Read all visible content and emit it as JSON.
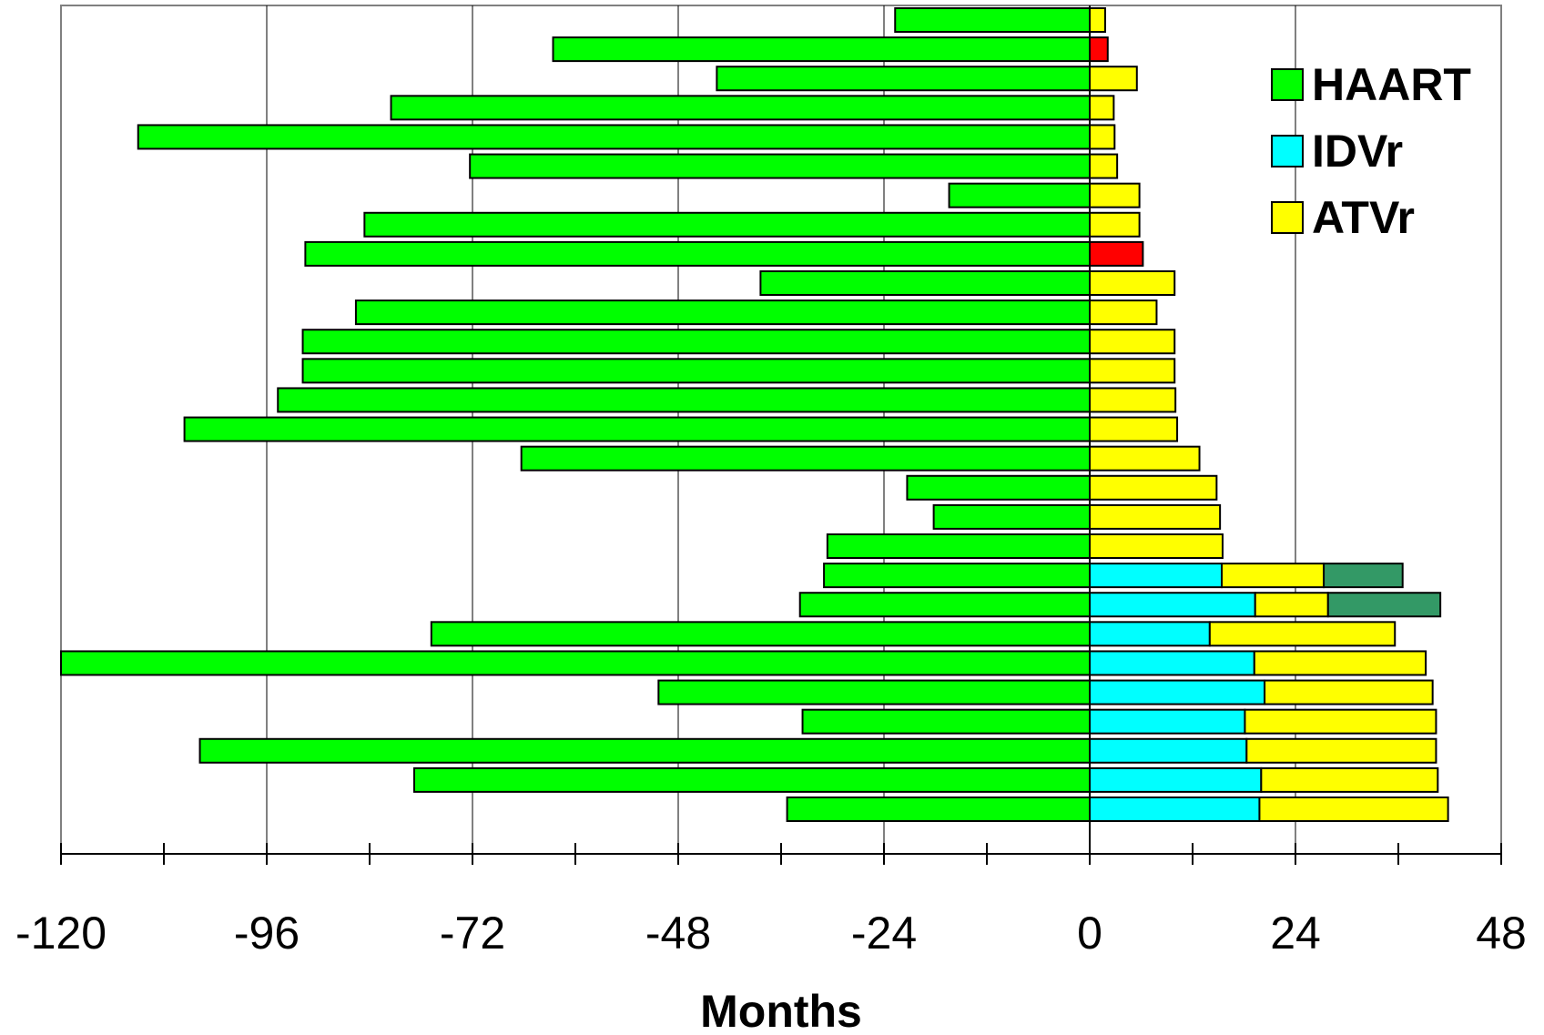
{
  "chart_data": {
    "type": "bar",
    "orientation": "horizontal",
    "stacked": true,
    "title": "",
    "xlabel": "Months",
    "ylabel": "",
    "xlim": [
      -120,
      48
    ],
    "xticks": [
      -120,
      -96,
      -72,
      -48,
      -24,
      0,
      24,
      48
    ],
    "xtick_labels": [
      "-120",
      "-96",
      "-72",
      "-48",
      "-24",
      "0",
      "24",
      "48"
    ],
    "grid": "vertical major gridlines",
    "legend_position": "top-right",
    "legend": [
      {
        "label": "HAART",
        "color": "#00ff00"
      },
      {
        "label": "IDVr",
        "color": "#00ffff"
      },
      {
        "label": "ATVr",
        "color": "#ffff00"
      }
    ],
    "segment_colors": {
      "HAART": "#00ff00",
      "IDVr": "#00ffff",
      "ATVr": "#ffff00",
      "red": "#ff0000",
      "dark_green": "#339966"
    },
    "bars": [
      {
        "segments": [
          {
            "kind": "HAART",
            "start": -22.7,
            "end": 0
          },
          {
            "kind": "ATVr",
            "start": 0,
            "end": 1.8
          }
        ]
      },
      {
        "segments": [
          {
            "kind": "HAART",
            "start": -62.6,
            "end": 0
          },
          {
            "kind": "red",
            "start": 0,
            "end": 2.1
          }
        ]
      },
      {
        "segments": [
          {
            "kind": "HAART",
            "start": -43.5,
            "end": 0
          },
          {
            "kind": "ATVr",
            "start": 0,
            "end": 5.5
          }
        ]
      },
      {
        "segments": [
          {
            "kind": "HAART",
            "start": -81.5,
            "end": 0
          },
          {
            "kind": "ATVr",
            "start": 0,
            "end": 2.8
          }
        ]
      },
      {
        "segments": [
          {
            "kind": "HAART",
            "start": -111.0,
            "end": 0
          },
          {
            "kind": "ATVr",
            "start": 0,
            "end": 2.9
          }
        ]
      },
      {
        "segments": [
          {
            "kind": "HAART",
            "start": -72.3,
            "end": 0
          },
          {
            "kind": "ATVr",
            "start": 0,
            "end": 3.2
          }
        ]
      },
      {
        "segments": [
          {
            "kind": "HAART",
            "start": -16.4,
            "end": 0
          },
          {
            "kind": "ATVr",
            "start": 0,
            "end": 5.8
          }
        ]
      },
      {
        "segments": [
          {
            "kind": "HAART",
            "start": -84.6,
            "end": 0
          },
          {
            "kind": "ATVr",
            "start": 0,
            "end": 5.8
          }
        ]
      },
      {
        "segments": [
          {
            "kind": "HAART",
            "start": -91.5,
            "end": 0
          },
          {
            "kind": "red",
            "start": 0,
            "end": 6.2
          }
        ]
      },
      {
        "segments": [
          {
            "kind": "HAART",
            "start": -38.4,
            "end": 0
          },
          {
            "kind": "ATVr",
            "start": 0,
            "end": 9.9
          }
        ]
      },
      {
        "segments": [
          {
            "kind": "HAART",
            "start": -85.6,
            "end": 0
          },
          {
            "kind": "ATVr",
            "start": 0,
            "end": 7.8
          }
        ]
      },
      {
        "segments": [
          {
            "kind": "HAART",
            "start": -91.8,
            "end": 0
          },
          {
            "kind": "ATVr",
            "start": 0,
            "end": 9.9
          }
        ]
      },
      {
        "segments": [
          {
            "kind": "HAART",
            "start": -91.8,
            "end": 0
          },
          {
            "kind": "ATVr",
            "start": 0,
            "end": 9.9
          }
        ]
      },
      {
        "segments": [
          {
            "kind": "HAART",
            "start": -94.7,
            "end": 0
          },
          {
            "kind": "ATVr",
            "start": 0,
            "end": 10.0
          }
        ]
      },
      {
        "segments": [
          {
            "kind": "HAART",
            "start": -105.6,
            "end": 0
          },
          {
            "kind": "ATVr",
            "start": 0,
            "end": 10.2
          }
        ]
      },
      {
        "segments": [
          {
            "kind": "HAART",
            "start": -66.3,
            "end": 0
          },
          {
            "kind": "ATVr",
            "start": 0,
            "end": 12.8
          }
        ]
      },
      {
        "segments": [
          {
            "kind": "HAART",
            "start": -21.3,
            "end": 0
          },
          {
            "kind": "ATVr",
            "start": 0,
            "end": 14.8
          }
        ]
      },
      {
        "segments": [
          {
            "kind": "HAART",
            "start": -18.2,
            "end": 0
          },
          {
            "kind": "ATVr",
            "start": 0,
            "end": 15.2
          }
        ]
      },
      {
        "segments": [
          {
            "kind": "HAART",
            "start": -30.6,
            "end": 0
          },
          {
            "kind": "ATVr",
            "start": 0,
            "end": 15.5
          }
        ]
      },
      {
        "segments": [
          {
            "kind": "HAART",
            "start": -31.0,
            "end": 0
          },
          {
            "kind": "IDVr",
            "start": 0,
            "end": 15.4
          },
          {
            "kind": "ATVr",
            "start": 15.4,
            "end": 27.3
          },
          {
            "kind": "dark_green",
            "start": 27.3,
            "end": 36.5
          }
        ]
      },
      {
        "segments": [
          {
            "kind": "HAART",
            "start": -33.8,
            "end": 0
          },
          {
            "kind": "IDVr",
            "start": 0,
            "end": 19.3
          },
          {
            "kind": "ATVr",
            "start": 19.3,
            "end": 27.8
          },
          {
            "kind": "dark_green",
            "start": 27.8,
            "end": 40.9
          }
        ]
      },
      {
        "segments": [
          {
            "kind": "HAART",
            "start": -76.8,
            "end": 0
          },
          {
            "kind": "IDVr",
            "start": 0,
            "end": 14.0
          },
          {
            "kind": "ATVr",
            "start": 14.0,
            "end": 35.6
          }
        ]
      },
      {
        "segments": [
          {
            "kind": "HAART",
            "start": -120.0,
            "end": 0
          },
          {
            "kind": "IDVr",
            "start": 0,
            "end": 19.2
          },
          {
            "kind": "ATVr",
            "start": 19.2,
            "end": 39.2
          }
        ]
      },
      {
        "segments": [
          {
            "kind": "HAART",
            "start": -50.3,
            "end": 0
          },
          {
            "kind": "IDVr",
            "start": 0,
            "end": 20.4
          },
          {
            "kind": "ATVr",
            "start": 20.4,
            "end": 40.0
          }
        ]
      },
      {
        "segments": [
          {
            "kind": "HAART",
            "start": -33.5,
            "end": 0
          },
          {
            "kind": "IDVr",
            "start": 0,
            "end": 18.1
          },
          {
            "kind": "ATVr",
            "start": 18.1,
            "end": 40.4
          }
        ]
      },
      {
        "segments": [
          {
            "kind": "HAART",
            "start": -103.8,
            "end": 0
          },
          {
            "kind": "IDVr",
            "start": 0,
            "end": 18.3
          },
          {
            "kind": "ATVr",
            "start": 18.3,
            "end": 40.4
          }
        ]
      },
      {
        "segments": [
          {
            "kind": "HAART",
            "start": -78.8,
            "end": 0
          },
          {
            "kind": "IDVr",
            "start": 0,
            "end": 20.0
          },
          {
            "kind": "ATVr",
            "start": 20.0,
            "end": 40.6
          }
        ]
      },
      {
        "segments": [
          {
            "kind": "HAART",
            "start": -35.3,
            "end": 0
          },
          {
            "kind": "IDVr",
            "start": 0,
            "end": 19.8
          },
          {
            "kind": "ATVr",
            "start": 19.8,
            "end": 41.8
          }
        ]
      }
    ]
  }
}
